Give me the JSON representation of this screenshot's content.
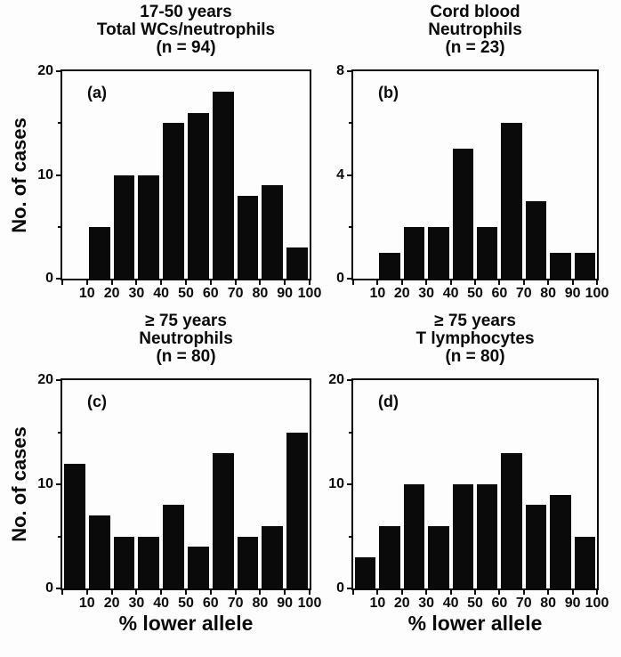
{
  "figure": {
    "y_axis_label": "No. of cases",
    "x_axis_label": "% lower allele",
    "bar_color": "#0a0a0a",
    "background_color": "#fdfdfd"
  },
  "chart_data": [
    {
      "type": "bar",
      "panel": "a",
      "letter": "(a)",
      "title": [
        "17-50 years",
        "Total WCs/neutrophils",
        "(n = 94)"
      ],
      "n": 94,
      "bin_edges": [
        10,
        20,
        30,
        40,
        50,
        60,
        70,
        80,
        90,
        100
      ],
      "values": [
        5,
        10,
        10,
        15,
        16,
        18,
        8,
        9,
        3
      ],
      "xlim": [
        0,
        100
      ],
      "ylim": [
        0,
        20
      ],
      "xticks": [
        10,
        20,
        30,
        40,
        50,
        60,
        70,
        80,
        90,
        100
      ],
      "yticks": [
        0,
        10,
        20
      ],
      "yticks_minor": [
        5,
        15
      ],
      "ylabel": "No. of cases",
      "xlabel": ""
    },
    {
      "type": "bar",
      "panel": "b",
      "letter": "(b)",
      "title": [
        "Cord blood",
        "Neutrophils",
        "(n = 23)"
      ],
      "n": 23,
      "bin_edges": [
        10,
        20,
        30,
        40,
        50,
        60,
        70,
        80,
        90,
        100
      ],
      "values": [
        1,
        2,
        2,
        5,
        2,
        6,
        3,
        1,
        1
      ],
      "xlim": [
        0,
        100
      ],
      "ylim": [
        0,
        8
      ],
      "xticks": [
        10,
        20,
        30,
        40,
        50,
        60,
        70,
        80,
        90,
        100
      ],
      "yticks": [
        0,
        4,
        8
      ],
      "yticks_minor": [
        2,
        6
      ],
      "ylabel": "",
      "xlabel": ""
    },
    {
      "type": "bar",
      "panel": "c",
      "letter": "(c)",
      "title": [
        "≥ 75 years",
        "Neutrophils",
        "(n = 80)"
      ],
      "n": 80,
      "bin_edges": [
        0,
        10,
        20,
        30,
        40,
        50,
        60,
        70,
        80,
        90,
        100
      ],
      "values": [
        12,
        7,
        5,
        5,
        8,
        4,
        13,
        5,
        6,
        15
      ],
      "xlim": [
        0,
        100
      ],
      "ylim": [
        0,
        20
      ],
      "xticks": [
        10,
        20,
        30,
        40,
        50,
        60,
        70,
        80,
        90,
        100
      ],
      "yticks": [
        0,
        10,
        20
      ],
      "yticks_minor": [
        5,
        15
      ],
      "ylabel": "No. of cases",
      "xlabel": "% lower allele"
    },
    {
      "type": "bar",
      "panel": "d",
      "letter": "(d)",
      "title": [
        "≥ 75 years",
        "T lymphocytes",
        "(n = 80)"
      ],
      "n": 80,
      "bin_edges": [
        0,
        10,
        20,
        30,
        40,
        50,
        60,
        70,
        80,
        90,
        100
      ],
      "values": [
        3,
        6,
        10,
        6,
        10,
        10,
        13,
        8,
        9,
        5
      ],
      "xlim": [
        0,
        100
      ],
      "ylim": [
        0,
        20
      ],
      "xticks": [
        10,
        20,
        30,
        40,
        50,
        60,
        70,
        80,
        90,
        100
      ],
      "yticks": [
        0,
        10,
        20
      ],
      "yticks_minor": [
        5,
        15
      ],
      "ylabel": "",
      "xlabel": "% lower allele"
    }
  ]
}
